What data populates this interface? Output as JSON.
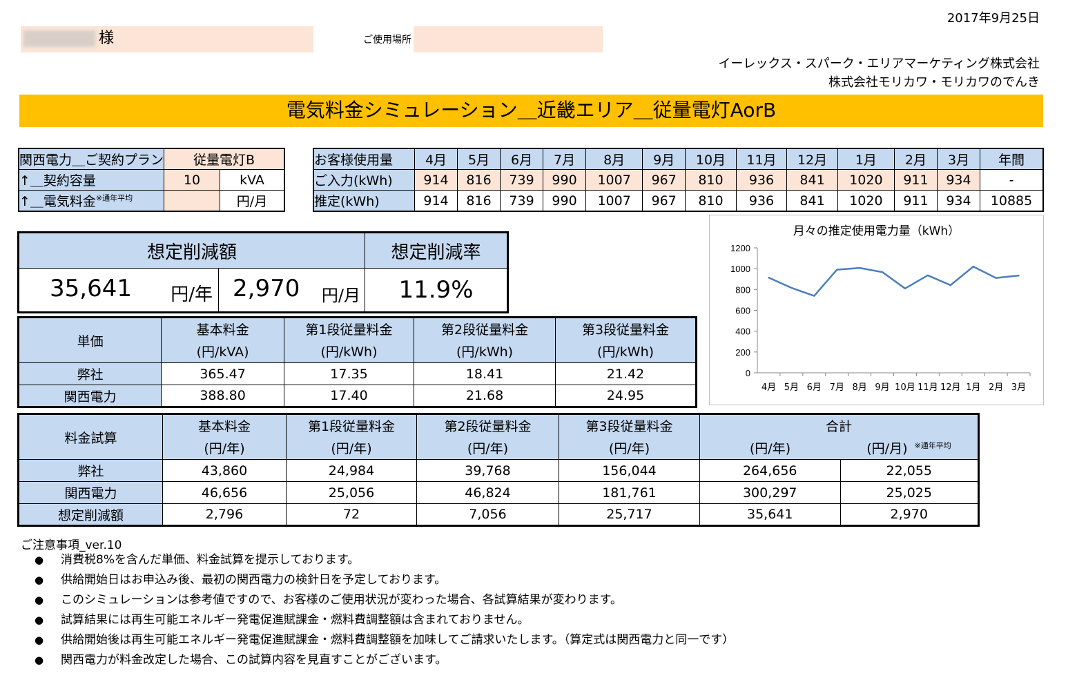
{
  "date": "2017年9月25日",
  "customer": {
    "name_redacted": "████",
    "honorific": "様",
    "location_label": "ご使用場所",
    "location_value": ""
  },
  "companies": [
    "イーレックス・スパーク・エリアマーケティング株式会社",
    "株式会社モリカワ・モリカワのでんき"
  ],
  "title": "電気料金シミュレーション＿近畿エリア＿従量電灯AorB",
  "contract": {
    "plan_label": "関西電力＿ご契約プラン",
    "plan_value": "従量電灯B",
    "capacity_label": "↑＿契約容量",
    "capacity_value": "10",
    "capacity_unit": "kVA",
    "fee_label": "↑＿電気料金",
    "fee_sup": "※通年平均",
    "fee_value": "",
    "fee_unit": "円/月"
  },
  "usage": {
    "header": "お客様使用量",
    "months": [
      "4月",
      "5月",
      "6月",
      "7月",
      "8月",
      "9月",
      "10月",
      "11月",
      "12月",
      "1月",
      "2月",
      "3月"
    ],
    "annual_label": "年間",
    "input_label": "ご入力(kWh)",
    "input_values": [
      "914",
      "816",
      "739",
      "990",
      "1007",
      "967",
      "810",
      "936",
      "841",
      "1020",
      "911",
      "934"
    ],
    "input_annual": "-",
    "estimate_label": "推定(kWh)",
    "estimate_values": [
      "914",
      "816",
      "739",
      "990",
      "1007",
      "967",
      "810",
      "936",
      "841",
      "1020",
      "911",
      "934"
    ],
    "estimate_annual": "10885"
  },
  "savings": {
    "amount_label": "想定削減額",
    "rate_label": "想定削減率",
    "annual": "35,641",
    "annual_unit": "円/年",
    "monthly": "2,970",
    "monthly_unit": "円/月",
    "rate": "11.9%"
  },
  "unit_price": {
    "header": "単価",
    "cols": [
      {
        "name": "基本料金",
        "unit": "(円/kVA)"
      },
      {
        "name": "第1段従量料金",
        "unit": "(円/kWh)"
      },
      {
        "name": "第2段従量料金",
        "unit": "(円/kWh)"
      },
      {
        "name": "第3段従量料金",
        "unit": "(円/kWh)"
      }
    ],
    "rows": [
      {
        "label": "弊社",
        "values": [
          "365.47",
          "17.35",
          "18.41",
          "21.42"
        ]
      },
      {
        "label": "関西電力",
        "values": [
          "388.80",
          "17.40",
          "21.68",
          "24.95"
        ]
      }
    ]
  },
  "fee_calc": {
    "header": "料金試算",
    "cols": [
      {
        "name": "基本料金",
        "unit": "(円/年)"
      },
      {
        "name": "第1段従量料金",
        "unit": "(円/年)"
      },
      {
        "name": "第2段従量料金",
        "unit": "(円/年)"
      },
      {
        "name": "第3段従量料金",
        "unit": "(円/年)"
      }
    ],
    "total_name": "合計",
    "total_unit_year": "(円/年)",
    "total_unit_month": "(円/月)",
    "total_note": "※通年平均",
    "rows": [
      {
        "label": "弊社",
        "values": [
          "43,860",
          "24,984",
          "39,768",
          "156,044",
          "264,656",
          "22,055"
        ]
      },
      {
        "label": "関西電力",
        "values": [
          "46,656",
          "25,056",
          "46,824",
          "181,761",
          "300,297",
          "25,025"
        ]
      },
      {
        "label": "想定削減額",
        "values": [
          "2,796",
          "72",
          "7,056",
          "25,717",
          "35,641",
          "2,970"
        ]
      }
    ]
  },
  "notes": {
    "title": "ご注意事項_ver.10",
    "items": [
      "消費税8%を含んだ単価、料金試算を提示しております。",
      "供給開始日はお申込み後、最初の関西電力の検針日を予定しております。",
      "このシミュレーションは参考値ですので、お客様のご使用状況が変わった場合、各試算結果が変わります。",
      "試算結果には再生可能エネルギー発電促進賦課金・燃料費調整額は含まれておりません。",
      "供給開始後は再生可能エネルギー発電促進賦課金・燃料費調整額を加味してご請求いたします。（算定式は関西電力と同一です）",
      "関西電力が料金改定した場合、この試算内容を見直すことがございます。"
    ],
    "bullet": "●"
  },
  "chart_data": {
    "type": "line",
    "title": "月々の推定使用電力量（kWh）",
    "categories": [
      "4月",
      "5月",
      "6月",
      "7月",
      "8月",
      "9月",
      "10月",
      "11月",
      "12月",
      "1月",
      "2月",
      "3月"
    ],
    "values": [
      914,
      816,
      739,
      990,
      1007,
      967,
      810,
      936,
      841,
      1020,
      911,
      934
    ],
    "ylim": [
      0,
      1200
    ],
    "yticks": [
      "0",
      "200",
      "400",
      "600",
      "800",
      "1000",
      "1200"
    ],
    "color": "#4a7ebb",
    "grid": false
  }
}
